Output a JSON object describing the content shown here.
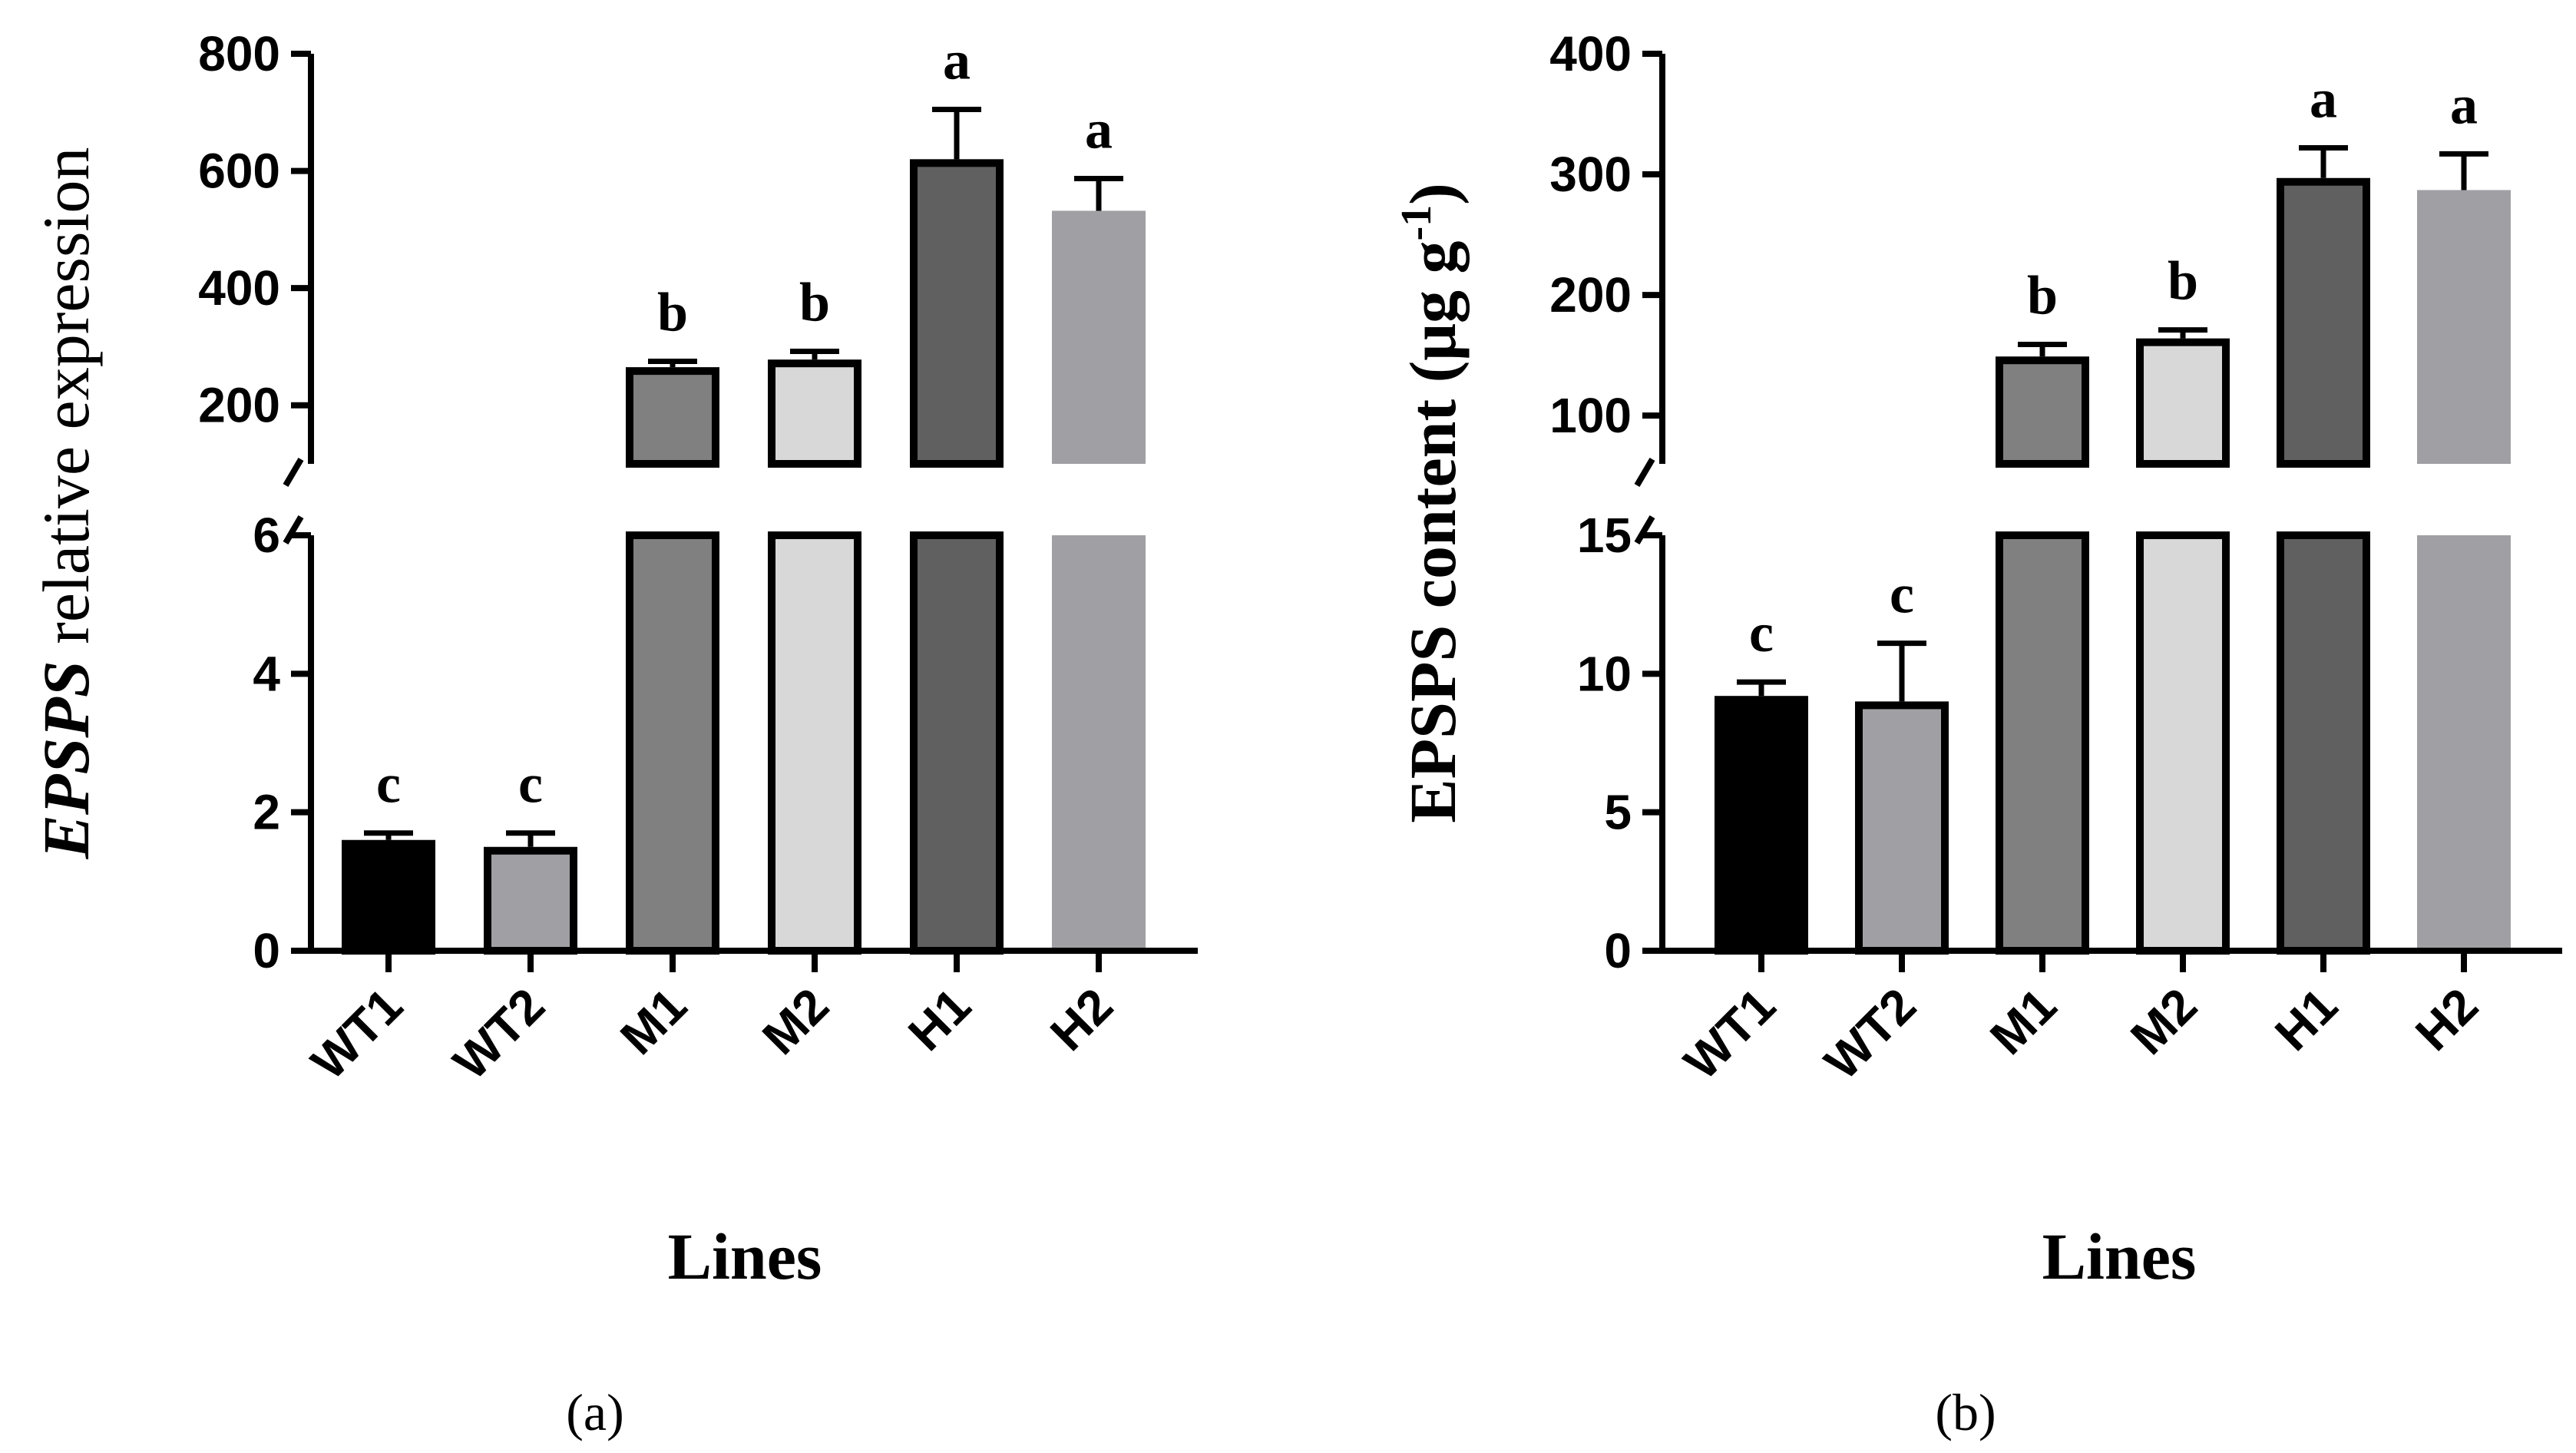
{
  "chart_data": [
    {
      "type": "bar",
      "panel_label": "(a)",
      "ylabel_italic": "EPSPS",
      "ylabel_rest": " relative expression",
      "xlabel": "Lines",
      "categories": [
        "WT1",
        "WT2",
        "M1",
        "M2",
        "H1",
        "H2"
      ],
      "values": [
        1.6,
        1.5,
        265,
        278,
        620,
        532
      ],
      "errors": [
        0.1,
        0.2,
        10,
        14,
        85,
        55
      ],
      "significance": [
        "c",
        "c",
        "b",
        "b",
        "a",
        "a"
      ],
      "bar_colors": [
        "#000000",
        "#a0a0a4",
        "#808080",
        "#d8d8d8",
        "#606060",
        "#a0a0a4"
      ],
      "bar_outline": [
        true,
        true,
        true,
        true,
        true,
        false
      ],
      "axis_break": true,
      "lower_ylim": [
        0,
        6
      ],
      "lower_ticks": [
        "0",
        "2",
        "4",
        "6"
      ],
      "upper_ylim": [
        100,
        800
      ],
      "upper_ticks": [
        "200",
        "400",
        "600",
        "800"
      ]
    },
    {
      "type": "bar",
      "panel_label": "(b)",
      "ylabel_main": "EPSPS content (μg g",
      "ylabel_sup": "-1",
      "ylabel_close": ")",
      "xlabel": "Lines",
      "categories": [
        "WT1",
        "WT2",
        "M1",
        "M2",
        "H1",
        "H2"
      ],
      "values": [
        9.2,
        9.0,
        149,
        164,
        297,
        287
      ],
      "errors": [
        0.5,
        2.1,
        10,
        7,
        25,
        30
      ],
      "significance": [
        "c",
        "c",
        "b",
        "b",
        "a",
        "a"
      ],
      "bar_colors": [
        "#000000",
        "#a0a0a4",
        "#808080",
        "#d8d8d8",
        "#606060",
        "#a0a0a4"
      ],
      "bar_outline": [
        true,
        true,
        true,
        true,
        true,
        false
      ],
      "axis_break": true,
      "lower_ylim": [
        0,
        15
      ],
      "lower_ticks": [
        "0",
        "5",
        "10",
        "15"
      ],
      "upper_ylim": [
        60,
        400
      ],
      "upper_ticks": [
        "100",
        "200",
        "300",
        "400"
      ]
    }
  ]
}
